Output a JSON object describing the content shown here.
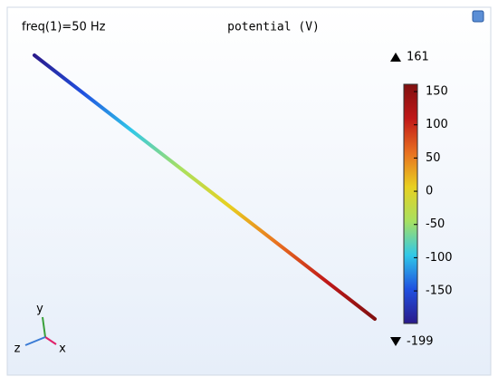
{
  "chart_data": {
    "type": "colorline",
    "title": "potential (V)",
    "annotation": "freq(1)=50 Hz",
    "max": 161,
    "min": -199,
    "colorbar": {
      "lim": [
        -199,
        161
      ],
      "ticks": [
        150,
        100,
        50,
        0,
        -50,
        -100,
        -150
      ]
    },
    "axis_labels": [
      "y",
      "z",
      "x"
    ]
  }
}
